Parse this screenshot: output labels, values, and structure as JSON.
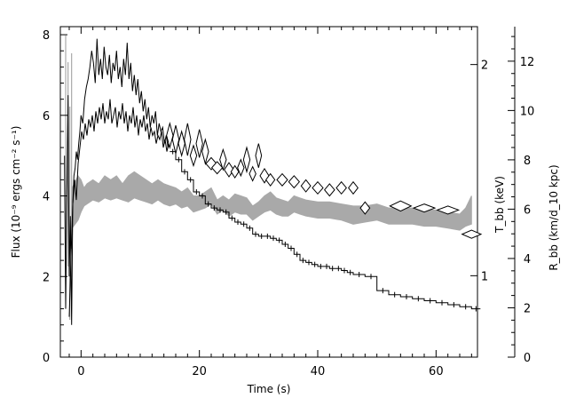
{
  "chart_data": {
    "type": "line",
    "xlabel": "Time (s)",
    "ylabel_left": "Flux (10⁻⁹ ergs cm⁻² s⁻¹)",
    "ylabel_right_inner": "T_bb (keV)",
    "ylabel_right_outer": "R_bb (km/d_10 kpc)",
    "xlim": [
      -3.5,
      67
    ],
    "ylim_left": [
      0,
      8.2
    ],
    "ylim_right_outer": [
      0,
      13.4
    ],
    "x_ticks": [
      0,
      20,
      40,
      60
    ],
    "y_ticks_left": [
      0,
      2,
      4,
      6,
      8
    ],
    "y_ticks_right_inner": [
      1,
      2
    ],
    "y_ticks_right_outer": [
      0,
      2,
      4,
      6,
      8,
      10,
      12
    ],
    "colors": {
      "flux": "#000000",
      "temperature": "#000000",
      "radius_band": "#a9a9a9"
    },
    "series": [
      {
        "role": "flux-fast-upper",
        "x": [
          -2.8,
          -2.6,
          -2.4,
          -2.2,
          -2,
          -1.8,
          -1.6,
          -1.4,
          -1.2,
          -1,
          -0.8,
          -0.6,
          -0.4,
          -0.2,
          0,
          0.3,
          0.6,
          0.9,
          1.2,
          1.5,
          1.8,
          2.1,
          2.4,
          2.7,
          3,
          3.3,
          3.6,
          3.9,
          4.2,
          4.5,
          4.8,
          5.1,
          5.4,
          5.7,
          6,
          6.3,
          6.6,
          6.9,
          7.2,
          7.5,
          7.8,
          8.1,
          8.4,
          8.7,
          9,
          9.3,
          9.6,
          9.9,
          10.2,
          10.5,
          10.8,
          11.1,
          11.4,
          11.7,
          12,
          12.3,
          12.6,
          12.9,
          13.2,
          13.5,
          13.8,
          14.1,
          14.4,
          14.7,
          15
        ],
        "y": [
          5.0,
          1.2,
          4.0,
          6.5,
          2.0,
          3.5,
          0.8,
          3.8,
          4.5,
          4.7,
          5.1,
          4.9,
          5.3,
          5.6,
          6.0,
          5.8,
          6.4,
          6.7,
          6.9,
          7.2,
          7.6,
          7.3,
          6.8,
          7.9,
          7.0,
          7.4,
          6.9,
          7.7,
          7.2,
          7.0,
          7.5,
          6.8,
          7.3,
          7.1,
          7.6,
          6.9,
          7.2,
          6.7,
          7.4,
          7.0,
          7.8,
          6.9,
          7.3,
          6.6,
          7.0,
          6.5,
          6.9,
          6.3,
          6.6,
          6.1,
          6.4,
          5.9,
          6.2,
          5.7,
          6.0,
          5.8,
          6.1,
          5.5,
          5.8,
          5.6,
          5.7,
          5.3,
          5.5,
          5.2,
          5.3
        ]
      },
      {
        "role": "flux-fast-lower",
        "x": [
          -2,
          -1.7,
          -1.4,
          -1.1,
          -0.8,
          -0.5,
          -0.2,
          0.1,
          0.4,
          0.7,
          1,
          1.3,
          1.6,
          1.9,
          2.2,
          2.5,
          2.8,
          3.1,
          3.4,
          3.7,
          4,
          4.3,
          4.6,
          4.9,
          5.2,
          5.5,
          5.8,
          6.1,
          6.4,
          6.7,
          7,
          7.3,
          7.6,
          7.9,
          8.2,
          8.5,
          8.8,
          9.1,
          9.4,
          9.7,
          10,
          10.3,
          10.6,
          10.9,
          11.2,
          11.5,
          11.8,
          12.1,
          12.4,
          12.7,
          13,
          13.3,
          13.6,
          13.9,
          14.2,
          14.5,
          14.8
        ],
        "y": [
          1.0,
          2.5,
          3.8,
          4.4,
          3.9,
          4.8,
          5.2,
          5.6,
          5.4,
          5.8,
          5.5,
          5.9,
          5.7,
          6.0,
          5.6,
          6.1,
          5.8,
          6.2,
          5.9,
          6.3,
          5.8,
          6.1,
          5.9,
          6.4,
          5.8,
          6.0,
          6.2,
          5.7,
          6.1,
          5.9,
          6.3,
          5.8,
          6.1,
          5.6,
          6.0,
          5.8,
          6.2,
          5.7,
          6.0,
          5.5,
          5.9,
          5.7,
          6.0,
          5.6,
          5.8,
          5.4,
          5.7,
          5.5,
          5.6,
          5.3,
          5.5,
          5.4,
          5.6,
          5.2,
          5.4,
          5.1,
          5.3
        ]
      },
      {
        "role": "flux-steps",
        "x": [
          15,
          16,
          17,
          18,
          19,
          20,
          21,
          22,
          23,
          24,
          25,
          26,
          27,
          28,
          29,
          30,
          31,
          32,
          33,
          34,
          35,
          36,
          37,
          38,
          39,
          40,
          41,
          42,
          43,
          44,
          45,
          46,
          48,
          50,
          52,
          54,
          56,
          58,
          60,
          62,
          64,
          66
        ],
        "y": [
          5.1,
          4.9,
          4.6,
          4.4,
          4.1,
          4.0,
          3.8,
          3.7,
          3.65,
          3.6,
          3.45,
          3.35,
          3.3,
          3.2,
          3.05,
          3.0,
          3.0,
          2.95,
          2.9,
          2.8,
          2.7,
          2.55,
          2.4,
          2.35,
          2.3,
          2.25,
          2.25,
          2.2,
          2.2,
          2.15,
          2.1,
          2.05,
          2.0,
          1.65,
          1.55,
          1.5,
          1.45,
          1.4,
          1.35,
          1.3,
          1.25,
          1.2
        ]
      },
      {
        "role": "radius-band-lower",
        "x": [
          -1.5,
          -0.5,
          0,
          0.5,
          1,
          2,
          3,
          4,
          5,
          6,
          7,
          8,
          9,
          10,
          11,
          12,
          13,
          14,
          15,
          16,
          17,
          18,
          19,
          20,
          21,
          22,
          23,
          24,
          25,
          26,
          27,
          28,
          29,
          30,
          31,
          32,
          33,
          34,
          35,
          36,
          37,
          38,
          40,
          42,
          44,
          46,
          48,
          50,
          52,
          54,
          56,
          58,
          60,
          62,
          64,
          65,
          66
        ],
        "y": [
          3.2,
          3.4,
          3.6,
          3.75,
          3.8,
          3.9,
          3.85,
          3.95,
          3.9,
          3.95,
          3.9,
          3.85,
          3.95,
          3.9,
          3.85,
          3.8,
          3.9,
          3.8,
          3.75,
          3.8,
          3.7,
          3.75,
          3.6,
          3.65,
          3.7,
          3.8,
          3.55,
          3.65,
          3.5,
          3.6,
          3.55,
          3.55,
          3.4,
          3.5,
          3.6,
          3.65,
          3.55,
          3.5,
          3.5,
          3.6,
          3.55,
          3.5,
          3.45,
          3.45,
          3.4,
          3.3,
          3.35,
          3.4,
          3.3,
          3.3,
          3.3,
          3.25,
          3.25,
          3.2,
          3.15,
          3.25,
          3.3
        ]
      },
      {
        "role": "radius-band-upper",
        "x": [
          -1.5,
          -0.5,
          0,
          0.5,
          1,
          2,
          3,
          4,
          5,
          6,
          7,
          8,
          9,
          10,
          11,
          12,
          13,
          14,
          15,
          16,
          17,
          18,
          19,
          20,
          21,
          22,
          23,
          24,
          25,
          26,
          27,
          28,
          29,
          30,
          31,
          32,
          33,
          34,
          35,
          36,
          37,
          38,
          40,
          42,
          44,
          46,
          48,
          50,
          52,
          54,
          56,
          58,
          60,
          62,
          64,
          65,
          66
        ],
        "y": [
          4.2,
          4.5,
          4.4,
          4.2,
          4.3,
          4.4,
          4.3,
          4.5,
          4.4,
          4.5,
          4.3,
          4.5,
          4.6,
          4.5,
          4.4,
          4.3,
          4.4,
          4.3,
          4.25,
          4.2,
          4.1,
          4.2,
          4.0,
          4.0,
          4.1,
          4.2,
          3.9,
          4.0,
          3.9,
          4.05,
          4.0,
          3.95,
          3.75,
          3.85,
          4.0,
          4.1,
          3.95,
          3.9,
          3.85,
          4.0,
          3.95,
          3.9,
          3.85,
          3.85,
          3.8,
          3.75,
          3.75,
          3.8,
          3.7,
          3.7,
          3.7,
          3.65,
          3.65,
          3.6,
          3.55,
          3.7,
          4.0
        ]
      },
      {
        "role": "temperature-diamonds",
        "x": [
          15,
          16,
          17,
          18,
          19,
          20,
          21,
          22,
          23,
          24,
          25,
          26,
          27,
          28,
          29,
          30,
          31,
          32,
          34,
          36,
          38,
          40,
          42,
          44,
          46,
          48,
          54,
          58,
          62,
          66
        ],
        "y": [
          5.5,
          5.4,
          5.3,
          5.4,
          5.0,
          5.3,
          5.1,
          4.8,
          4.7,
          4.9,
          4.65,
          4.6,
          4.7,
          4.9,
          4.55,
          5.0,
          4.5,
          4.4,
          4.4,
          4.35,
          4.25,
          4.2,
          4.15,
          4.2,
          4.2,
          3.7,
          3.75,
          3.7,
          3.65,
          3.05
        ],
        "h": [
          0.6,
          0.7,
          0.6,
          0.8,
          0.5,
          0.7,
          0.6,
          0.3,
          0.3,
          0.5,
          0.35,
          0.3,
          0.4,
          0.6,
          0.35,
          0.6,
          0.35,
          0.3,
          0.3,
          0.3,
          0.3,
          0.3,
          0.3,
          0.3,
          0.3,
          0.3,
          0.25,
          0.2,
          0.2,
          0.2
        ],
        "w": [
          1.1,
          1.1,
          1.1,
          1.1,
          1.1,
          1.1,
          1.1,
          1.8,
          1.8,
          1.1,
          1.6,
          1.3,
          1.1,
          1.1,
          1.1,
          1.0,
          1.5,
          1.5,
          1.8,
          1.8,
          1.6,
          1.8,
          1.7,
          1.7,
          1.6,
          1.6,
          3.6,
          3.6,
          3.6,
          3.2
        ]
      }
    ]
  }
}
